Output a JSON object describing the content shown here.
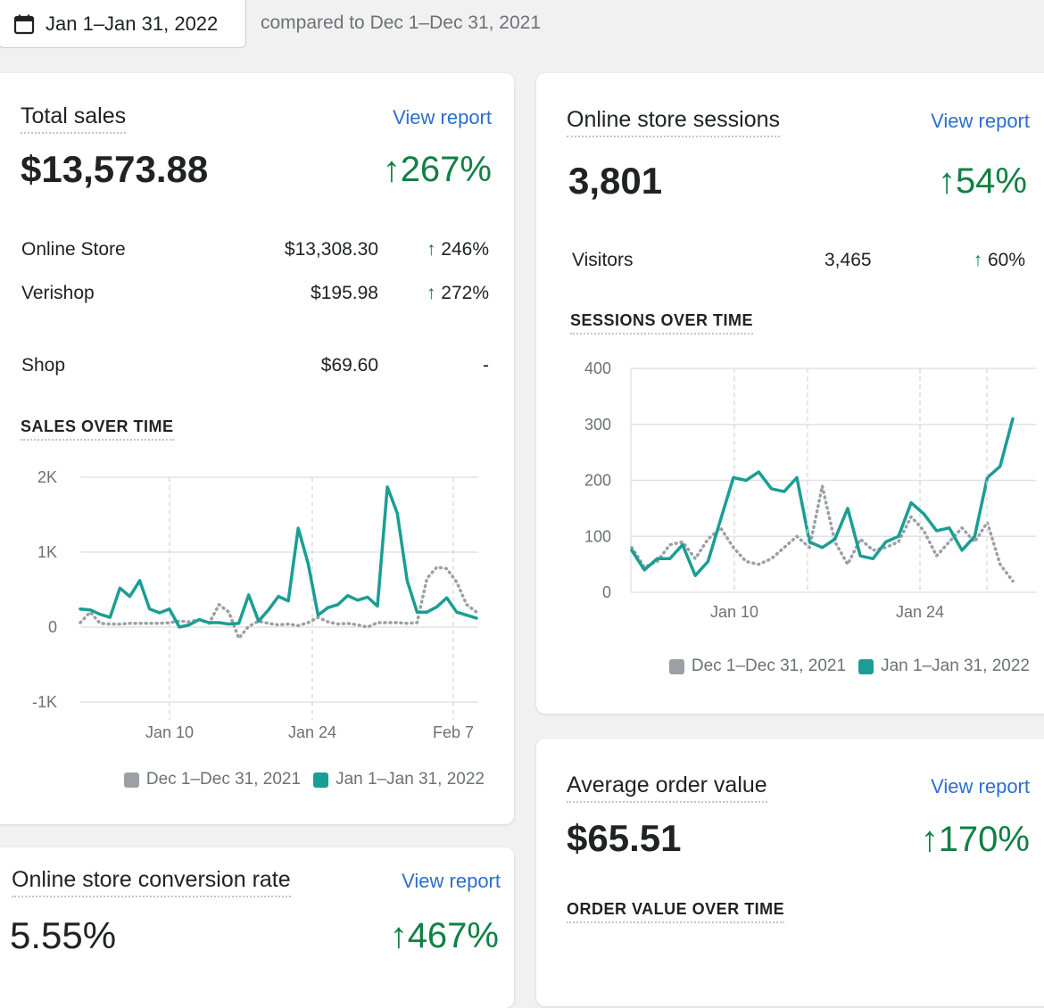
{
  "header": {
    "date_range": "Jan 1–Jan 31, 2022",
    "comparison": "compared to Dec 1–Dec 31, 2021",
    "calendar_icon": "calendar-icon"
  },
  "colors": {
    "current": "#1a9e94",
    "previous": "#9aa0a6",
    "positive": "#108043",
    "link": "#2c6ecb"
  },
  "total_sales": {
    "title": "Total sales",
    "view_report": "View report",
    "value": "$13,573.88",
    "change": "267%",
    "rows": [
      {
        "label": "Online Store",
        "value": "$13,308.30",
        "change": "246%"
      },
      {
        "label": "Verishop",
        "value": "$195.98",
        "change": "272%"
      },
      {
        "label": "Shop",
        "value": "$69.60",
        "change": "-"
      }
    ],
    "chart_title": "SALES OVER TIME",
    "legend_previous": "Dec 1–Dec 31, 2021",
    "legend_current": "Jan 1–Jan 31, 2022"
  },
  "sessions": {
    "title": "Online store sessions",
    "view_report": "View report",
    "value": "3,801",
    "change": "54%",
    "visitors_label": "Visitors",
    "visitors_value": "3,465",
    "visitors_change": "60%",
    "chart_title": "SESSIONS OVER TIME",
    "legend_previous": "Dec 1–Dec 31, 2021",
    "legend_current": "Jan 1–Jan 31, 2022"
  },
  "aov": {
    "title": "Average order value",
    "view_report": "View report",
    "value": "$65.51",
    "change": "170%",
    "chart_title": "ORDER VALUE OVER TIME"
  },
  "conversion": {
    "title": "Online store conversion rate",
    "view_report": "View report",
    "value": "5.55%",
    "change": "467%"
  },
  "chart_data": [
    {
      "type": "line",
      "title": "SALES OVER TIME",
      "y_ticks": [
        "2K",
        "1K",
        "0",
        "-1K"
      ],
      "x_ticks": [
        "Jan 10",
        "Jan 24",
        "Feb 7"
      ],
      "ylim": [
        -1000,
        2000
      ],
      "grid": true,
      "legend_position": "bottom",
      "series": [
        {
          "name": "Jan 1–Jan 31, 2022",
          "color": "#1a9e94",
          "values": [
            240,
            230,
            170,
            130,
            520,
            410,
            620,
            240,
            190,
            240,
            0,
            30,
            100,
            60,
            60,
            40,
            50,
            430,
            80,
            230,
            410,
            350,
            1320,
            850,
            160,
            260,
            300,
            420,
            360,
            400,
            280,
            1870,
            1520,
            620,
            200,
            200,
            270,
            390,
            200,
            160,
            120
          ]
        },
        {
          "name": "Dec 1–Dec 31, 2021",
          "color": "#9aa0a6",
          "values": [
            60,
            200,
            50,
            40,
            40,
            50,
            50,
            50,
            50,
            60,
            80,
            70,
            100,
            50,
            300,
            200,
            -150,
            10,
            80,
            50,
            30,
            40,
            20,
            60,
            130,
            70,
            40,
            50,
            30,
            0,
            60,
            60,
            60,
            50,
            60,
            650,
            800,
            780,
            600,
            300,
            200
          ]
        }
      ]
    },
    {
      "type": "line",
      "title": "SESSIONS OVER TIME",
      "y_ticks": [
        "400",
        "300",
        "200",
        "100",
        "0"
      ],
      "x_ticks": [
        "Jan 10",
        "Jan 24"
      ],
      "ylim": [
        0,
        400
      ],
      "grid": true,
      "legend_position": "bottom",
      "series": [
        {
          "name": "Jan 1–Jan 31, 2022",
          "color": "#1a9e94",
          "values": [
            75,
            40,
            60,
            60,
            85,
            30,
            55,
            130,
            205,
            200,
            215,
            185,
            180,
            205,
            90,
            80,
            95,
            150,
            65,
            60,
            90,
            100,
            160,
            140,
            110,
            115,
            75,
            100,
            205,
            225,
            310
          ]
        },
        {
          "name": "Dec 1–Dec 31, 2021",
          "color": "#9aa0a6",
          "values": [
            80,
            45,
            55,
            85,
            90,
            60,
            95,
            115,
            80,
            55,
            50,
            60,
            80,
            100,
            80,
            190,
            90,
            50,
            95,
            75,
            80,
            90,
            135,
            110,
            65,
            90,
            115,
            90,
            125,
            50,
            20
          ]
        }
      ]
    }
  ]
}
